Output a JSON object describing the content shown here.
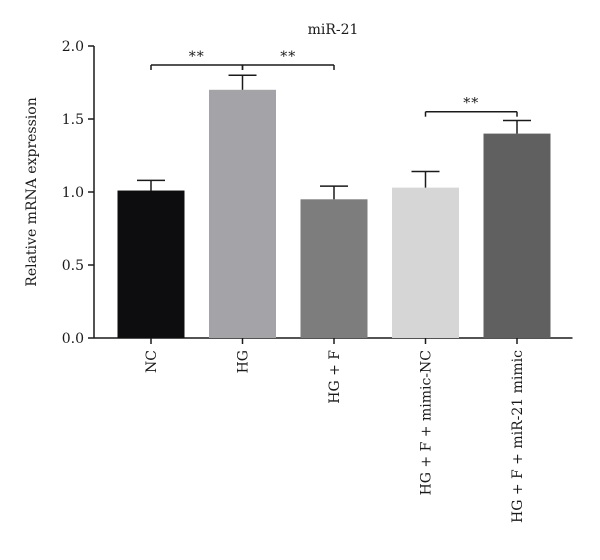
{
  "chart_data": {
    "type": "bar",
    "title": "miR-21",
    "xlabel": "",
    "ylabel": "Relative mRNA expression",
    "ylim": [
      0,
      2.0
    ],
    "yticks": [
      "0.0",
      "0.5",
      "1.0",
      "1.5",
      "2.0"
    ],
    "yticks_values": [
      0,
      0.5,
      1.0,
      1.5,
      2.0
    ],
    "grid": false,
    "categories": [
      "NC",
      "HG",
      "HG + F",
      "HG + F + mimic-NC",
      "HG + F + miR-21 mimic"
    ],
    "values": [
      1.01,
      1.7,
      0.95,
      1.03,
      1.4
    ],
    "errors": [
      0.07,
      0.1,
      0.09,
      0.11,
      0.09
    ],
    "colors": [
      "#0d0d0f",
      "#a4a4a8",
      "#7d7d7d",
      "#d6d6d6",
      "#5f605f"
    ],
    "significance": [
      {
        "from": 0,
        "to": 1,
        "y": 1.87,
        "label": "**"
      },
      {
        "from": 1,
        "to": 2,
        "y": 1.87,
        "label": "**"
      },
      {
        "from": 3,
        "to": 4,
        "y": 1.55,
        "label": "**"
      }
    ]
  }
}
